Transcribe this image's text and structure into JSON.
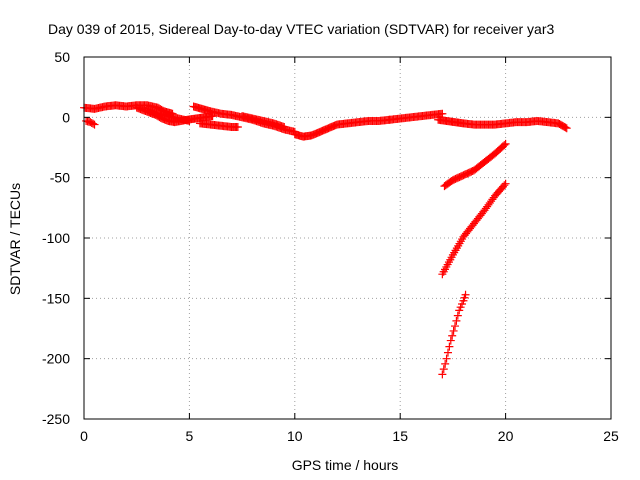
{
  "chart_data": {
    "type": "scatter",
    "title": "Day 039 of 2015, Sidereal Day-to-day VTEC variation (SDTVAR) for receiver yar3",
    "xlabel": "GPS time / hours",
    "ylabel": "SDTVAR / TECUs",
    "xlim": [
      0,
      25
    ],
    "ylim": [
      -250,
      50
    ],
    "xticks": [
      0,
      5,
      10,
      15,
      20,
      25
    ],
    "yticks": [
      -250,
      -200,
      -150,
      -100,
      -50,
      0,
      50
    ],
    "xtick_labels": [
      "0",
      "5",
      "10",
      "15",
      "20",
      "25"
    ],
    "ytick_labels": [
      "-250",
      "-200",
      "-150",
      "-100",
      "-50",
      "0",
      "50"
    ],
    "grid": true,
    "grid_style": "dotted",
    "marker": "plus",
    "color": "#ff0000",
    "series": [
      {
        "x": [
          0.0,
          0.5,
          1.0,
          1.5,
          2.0,
          2.5,
          3.0,
          3.5,
          3.8,
          4.2
        ],
        "y": [
          8,
          7,
          9,
          10,
          9,
          10,
          10,
          8,
          5,
          3
        ]
      },
      {
        "x": [
          0.1,
          0.3,
          0.5
        ],
        "y": [
          -3,
          -4,
          -6
        ]
      },
      {
        "x": [
          2.5,
          2.8,
          3.1,
          3.4,
          3.7,
          4.0,
          4.3,
          4.6,
          4.9,
          5.3,
          5.7,
          6.1
        ],
        "y": [
          8,
          6,
          4,
          2,
          -1,
          -3,
          -4,
          -3,
          -2,
          -1,
          0,
          1
        ]
      },
      {
        "x": [
          3.0,
          3.5,
          4.0,
          4.5,
          5.0
        ],
        "y": [
          6,
          3,
          1,
          -1,
          -3
        ]
      },
      {
        "x": [
          5.2,
          5.6,
          6.0,
          6.5,
          7.0,
          7.5,
          8.0,
          8.5,
          9.0,
          9.5,
          10.0
        ],
        "y": [
          9,
          7,
          5,
          3,
          2,
          0,
          -2,
          -5,
          -7,
          -10,
          -12
        ]
      },
      {
        "x": [
          5.5,
          6.0,
          6.5,
          7.0,
          7.3
        ],
        "y": [
          -5,
          -6,
          -7,
          -8,
          -8
        ]
      },
      {
        "x": [
          7.5,
          8.0,
          8.5,
          9.0,
          9.5
        ],
        "y": [
          1,
          -1,
          -3,
          -5,
          -8
        ]
      },
      {
        "x": [
          10.0,
          10.4,
          10.8,
          11.2,
          11.6,
          12.0,
          12.5,
          13.0,
          13.5,
          14.0,
          14.5
        ],
        "y": [
          -14,
          -16,
          -15,
          -12,
          -9,
          -6,
          -5,
          -4,
          -3,
          -3,
          -2
        ]
      },
      {
        "x": [
          14.5,
          15.0,
          15.5,
          16.0,
          16.5,
          17.0
        ],
        "y": [
          -2,
          -1,
          0,
          1,
          2,
          3
        ]
      },
      {
        "x": [
          16.8,
          17.2,
          17.6,
          18.0,
          18.5,
          19.0,
          19.5,
          20.0,
          20.5,
          21.0,
          21.5,
          22.0,
          22.5,
          22.9
        ],
        "y": [
          -2,
          -3,
          -4,
          -5,
          -6,
          -6,
          -6,
          -5,
          -4,
          -4,
          -3,
          -4,
          -5,
          -9
        ]
      },
      {
        "x": [
          17.1,
          17.5,
          18.0,
          18.5,
          19.0,
          19.5,
          20.0
        ],
        "y": [
          -57,
          -52,
          -48,
          -44,
          -37,
          -30,
          -22
        ]
      },
      {
        "x": [
          17.0,
          17.5,
          18.0,
          18.5,
          19.0,
          19.5,
          20.0
        ],
        "y": [
          -130,
          -114,
          -99,
          -88,
          -77,
          -65,
          -55
        ]
      },
      {
        "x": [
          17.0,
          17.2,
          17.4,
          17.6,
          17.8,
          18.0,
          18.1
        ],
        "y": [
          -213,
          -200,
          -185,
          -173,
          -160,
          -152,
          -147
        ]
      }
    ]
  }
}
